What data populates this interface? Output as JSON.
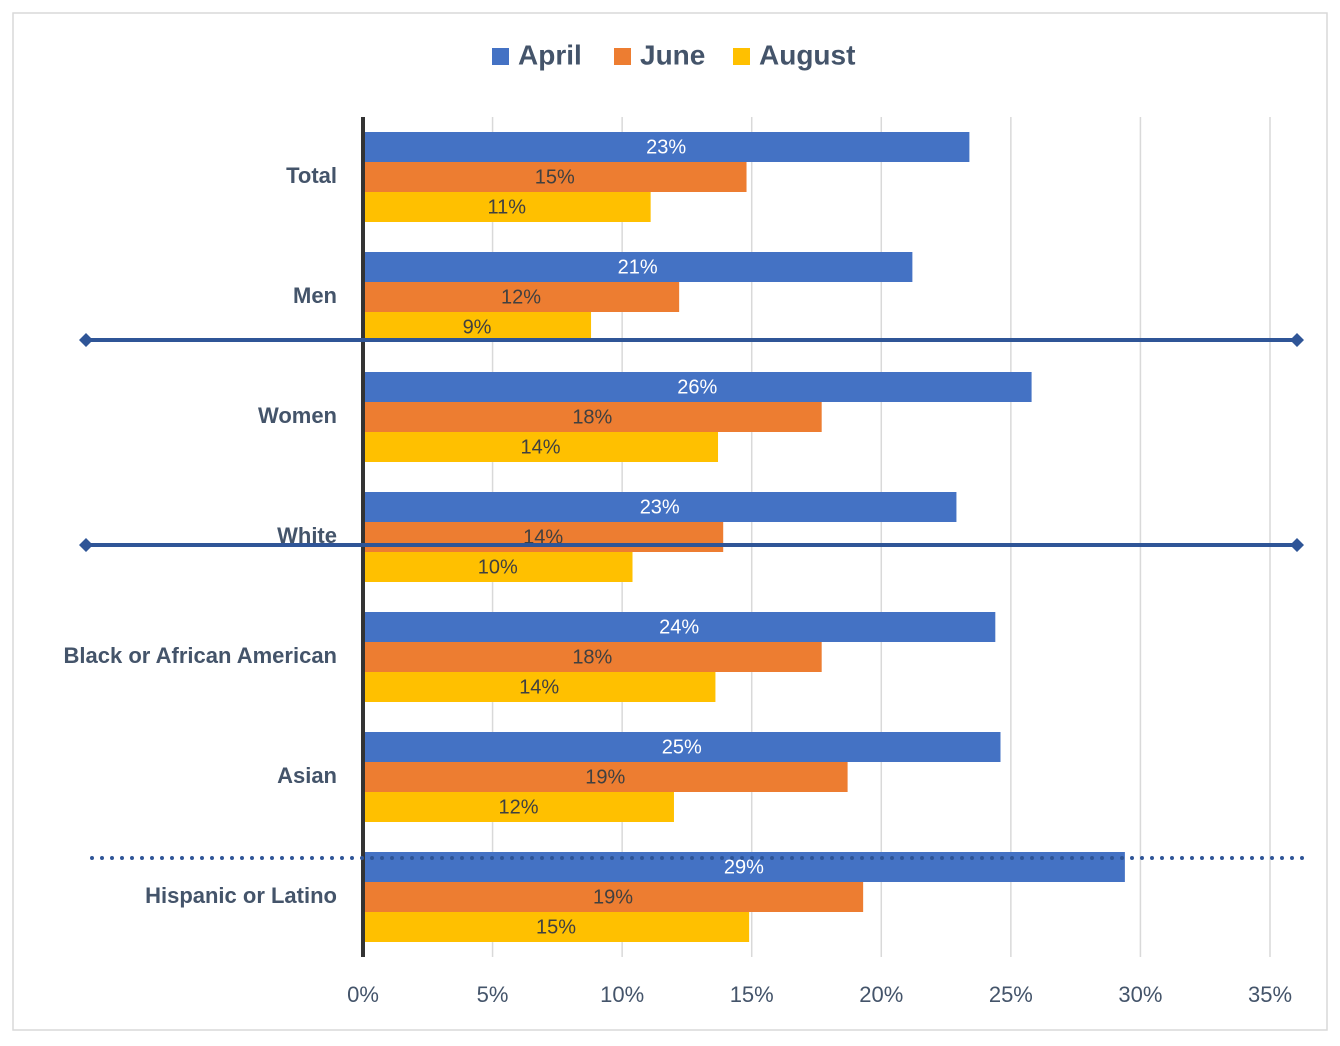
{
  "chart_data": {
    "type": "bar",
    "orientation": "horizontal",
    "categories": [
      "Total",
      "Men",
      "Women",
      "White",
      "Black or African American",
      "Asian",
      "Hispanic or Latino"
    ],
    "series": [
      {
        "name": "April",
        "color": "#4472c4",
        "values": [
          23.4,
          21.2,
          25.8,
          22.9,
          24.4,
          24.6,
          29.4
        ],
        "value_labels": [
          "23%",
          "21%",
          "26%",
          "23%",
          "24%",
          "25%",
          "29%"
        ]
      },
      {
        "name": "June",
        "color": "#ed7d31",
        "values": [
          14.8,
          12.2,
          17.7,
          13.9,
          17.7,
          18.7,
          19.3
        ],
        "value_labels": [
          "15%",
          "12%",
          "18%",
          "14%",
          "18%",
          "19%",
          "19%"
        ]
      },
      {
        "name": "August",
        "color": "#ffc000",
        "values": [
          11.1,
          8.8,
          13.7,
          10.4,
          13.6,
          12.0,
          14.9
        ],
        "value_labels": [
          "11%",
          "9%",
          "14%",
          "10%",
          "14%",
          "12%",
          "15%"
        ]
      }
    ],
    "xlim": [
      0,
      35
    ],
    "xticks": [
      {
        "value": 0,
        "label": "0%"
      },
      {
        "value": 5,
        "label": "5%"
      },
      {
        "value": 10,
        "label": "10%"
      },
      {
        "value": 15,
        "label": "15%"
      },
      {
        "value": 20,
        "label": "20%"
      },
      {
        "value": 25,
        "label": "25%"
      },
      {
        "value": 30,
        "label": "30%"
      },
      {
        "value": 35,
        "label": "35%"
      }
    ],
    "grid": true,
    "legend": "top"
  }
}
